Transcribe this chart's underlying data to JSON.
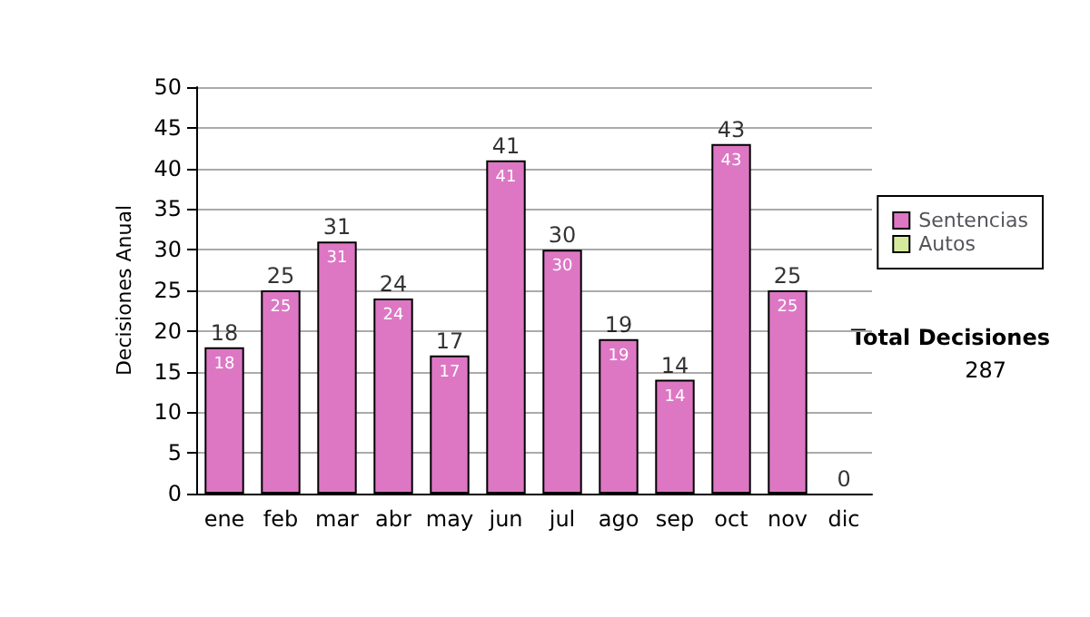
{
  "chart_data": {
    "type": "bar",
    "ylabel": "Decisiones Anual",
    "categories": [
      "ene",
      "feb",
      "mar",
      "abr",
      "may",
      "jun",
      "jul",
      "ago",
      "sep",
      "oct",
      "nov",
      "dic"
    ],
    "series": [
      {
        "name": "Sentencias",
        "color": "#dd77c4",
        "values": [
          18,
          25,
          31,
          24,
          17,
          41,
          30,
          19,
          14,
          43,
          25,
          0
        ],
        "value_labels": [
          "18",
          "25",
          "31",
          "24",
          "17",
          "41",
          "30",
          "19",
          "14",
          "43",
          "25",
          null
        ]
      },
      {
        "name": "Autos",
        "color": "#d4eb9e",
        "values": [
          0,
          0,
          0,
          0,
          0,
          0,
          0,
          0,
          0,
          0,
          0,
          0
        ]
      }
    ],
    "stacked": true,
    "totals": [
      "18",
      "25",
      "31",
      "24",
      "17",
      "41",
      "30",
      "19",
      "14",
      "43",
      "25",
      "0"
    ],
    "ylim": [
      0,
      50
    ],
    "yticks": [
      0,
      5,
      10,
      15,
      20,
      25,
      30,
      35,
      40,
      45,
      50
    ],
    "grid": "y",
    "legend": "right",
    "annotations": [
      "Total Decisiones",
      "287"
    ]
  }
}
